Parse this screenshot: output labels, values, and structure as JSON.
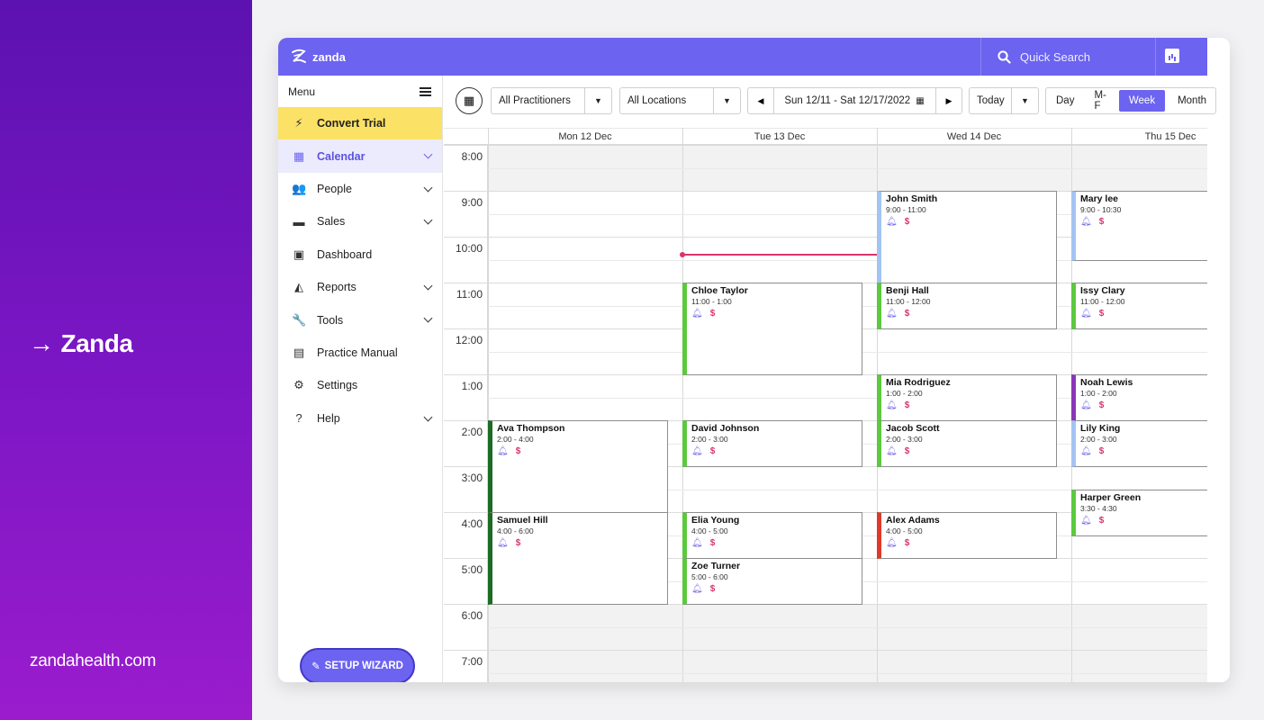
{
  "brand": {
    "name": "Zanda",
    "url": "zandahealth.com",
    "arrow_icon": "arrow-right-icon"
  },
  "colors": {
    "accent": "#6c63f0",
    "trial": "#fbe266",
    "now_line": "#d9346b",
    "panel_top": "#5c12b0",
    "panel_bottom": "#9a1ccd"
  },
  "topbar": {
    "logo_text": "zanda",
    "search_label": "Quick Search"
  },
  "sidebar": {
    "menu_label": "Menu",
    "items": [
      {
        "label": "Convert Trial",
        "icon": "bolt-icon",
        "chevron": false
      },
      {
        "label": "Calendar",
        "icon": "calendar-icon",
        "chevron": true
      },
      {
        "label": "People",
        "icon": "people-icon",
        "chevron": true
      },
      {
        "label": "Sales",
        "icon": "money-icon",
        "chevron": true
      },
      {
        "label": "Dashboard",
        "icon": "chart-icon",
        "chevron": false
      },
      {
        "label": "Reports",
        "icon": "area-chart-icon",
        "chevron": true
      },
      {
        "label": "Tools",
        "icon": "wrench-icon",
        "chevron": true
      },
      {
        "label": "Practice Manual",
        "icon": "document-icon",
        "chevron": false
      },
      {
        "label": "Settings",
        "icon": "gear-icon",
        "chevron": false
      },
      {
        "label": "Help",
        "icon": "help-icon",
        "chevron": true
      }
    ],
    "wizard_label": "SETUP WIZARD"
  },
  "toolbar": {
    "practitioners": "All Practitioners",
    "locations": "All Locations",
    "date_range": "Sun 12/11 - Sat 12/17/2022",
    "today": "Today",
    "views": [
      "Day",
      "M-F",
      "Week",
      "Month"
    ],
    "active_view": "Week"
  },
  "calendar": {
    "days": [
      "Mon 12 Dec",
      "Tue 13 Dec",
      "Wed 14 Dec",
      "Thu 15 Dec"
    ],
    "times": [
      "8:00",
      "9:00",
      "10:00",
      "11:00",
      "12:00",
      "1:00",
      "2:00",
      "3:00",
      "4:00",
      "5:00",
      "6:00",
      "7:00"
    ],
    "appointments": [
      {
        "name": "John Smith",
        "time": "9:00 - 11:00",
        "day": 2,
        "start": 9,
        "end": 11,
        "color": "#a3c4f3"
      },
      {
        "name": "Mary lee",
        "time": "9:00 - 10:30",
        "day": 3,
        "start": 9,
        "end": 10.5,
        "color": "#a3c4f3"
      },
      {
        "name": "Chloe Taylor",
        "time": "11:00 - 1:00",
        "day": 1,
        "start": 11,
        "end": 13,
        "color": "#5cc93e"
      },
      {
        "name": "Benji Hall",
        "time": "11:00 - 12:00",
        "day": 2,
        "start": 11,
        "end": 12,
        "color": "#5cc93e"
      },
      {
        "name": "Issy Clary",
        "time": "11:00 - 12:00",
        "day": 3,
        "start": 11,
        "end": 12,
        "color": "#5cc93e"
      },
      {
        "name": "Mia Rodriguez",
        "time": "1:00 - 2:00",
        "day": 2,
        "start": 13,
        "end": 14,
        "color": "#5cc93e"
      },
      {
        "name": "Noah Lewis",
        "time": "1:00 - 2:00",
        "day": 3,
        "start": 13,
        "end": 14,
        "color": "#8a36b8"
      },
      {
        "name": "Ava Thompson",
        "time": "2:00 - 4:00",
        "day": 0,
        "start": 14,
        "end": 16,
        "color": "#1e6b24"
      },
      {
        "name": "David Johnson",
        "time": "2:00 - 3:00",
        "day": 1,
        "start": 14,
        "end": 15,
        "color": "#5cc93e"
      },
      {
        "name": "Jacob Scott",
        "time": "2:00 - 3:00",
        "day": 2,
        "start": 14,
        "end": 15,
        "color": "#5cc93e"
      },
      {
        "name": "Lily King",
        "time": "2:00 - 3:00",
        "day": 3,
        "start": 14,
        "end": 15,
        "color": "#a3c4f3"
      },
      {
        "name": "Harper Green",
        "time": "3:30 - 4:30",
        "day": 3,
        "start": 15.5,
        "end": 16.5,
        "color": "#5cc93e"
      },
      {
        "name": "Samuel Hill",
        "time": "4:00 - 6:00",
        "day": 0,
        "start": 16,
        "end": 18,
        "color": "#1e6b24"
      },
      {
        "name": "Elia Young",
        "time": "4:00 - 5:00",
        "day": 1,
        "start": 16,
        "end": 17,
        "color": "#5cc93e"
      },
      {
        "name": "Alex Adams",
        "time": "4:00 - 5:00",
        "day": 2,
        "start": 16,
        "end": 17,
        "color": "#e0392b"
      },
      {
        "name": "Zoe Turner",
        "time": "5:00 - 6:00",
        "day": 1,
        "start": 17,
        "end": 18,
        "color": "#5cc93e"
      }
    ]
  }
}
